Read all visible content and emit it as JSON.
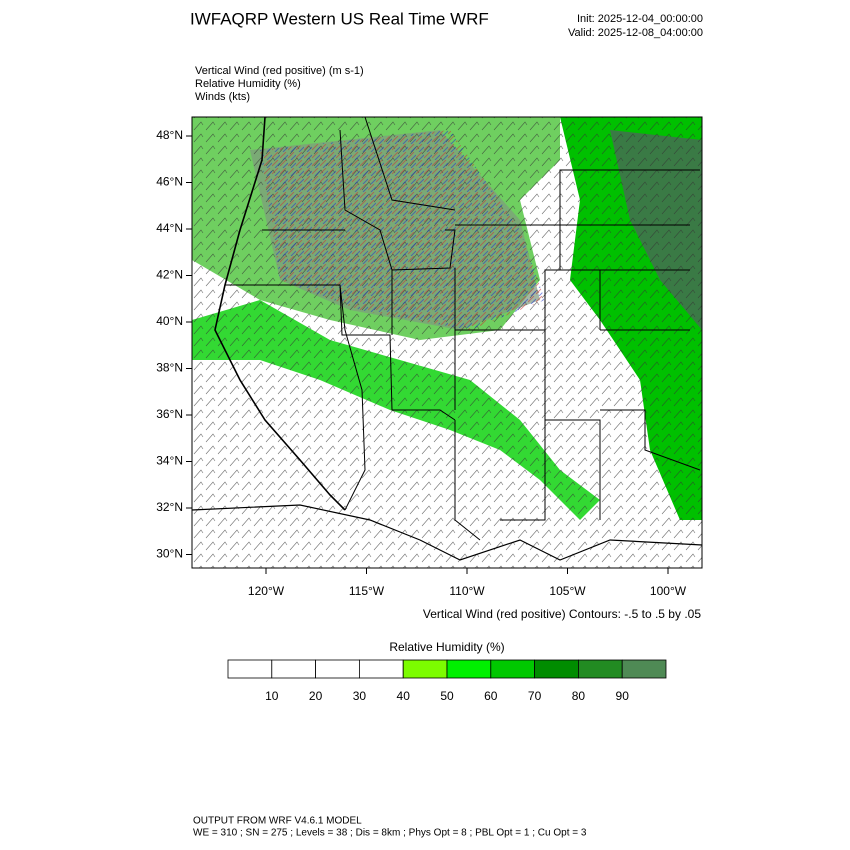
{
  "header": {
    "title": "IWFAQRP Western US Real Time WRF",
    "init": "Init: 2025-12-04_00:00:00",
    "valid": "Valid: 2025-12-08_04:00:00"
  },
  "fields": [
    "Vertical Wind (red positive)   (m s-1)",
    "Relative Humidity   (%)",
    "Winds   (kts)"
  ],
  "map": {
    "lat_labels": [
      "48°N",
      "46°N",
      "44°N",
      "42°N",
      "40°N",
      "38°N",
      "36°N",
      "34°N",
      "32°N",
      "30°N"
    ],
    "lon_labels": [
      "120°W",
      "115°W",
      "110°W",
      "105°W",
      "100°W"
    ],
    "contour_note": "Vertical Wind (red positive) Contours: -.5 to .5 by .05"
  },
  "colorbar": {
    "title": "Relative Humidity   (%)",
    "colors": [
      "#ffffff",
      "#ffffff",
      "#ffffff",
      "#ffffff",
      "#7cfc00",
      "#00f000",
      "#00c800",
      "#008c00",
      "#228b22",
      "#4f8a55"
    ],
    "labels": [
      10,
      20,
      30,
      40,
      50,
      60,
      70,
      80,
      90
    ]
  },
  "footer": [
    "OUTPUT FROM WRF V4.6.1 MODEL",
    "WE = 310 ; SN = 275 ; Levels = 38 ; Dis = 8km ; Phys Opt = 8 ; PBL Opt = 1 ; Cu Opt = 3"
  ]
}
